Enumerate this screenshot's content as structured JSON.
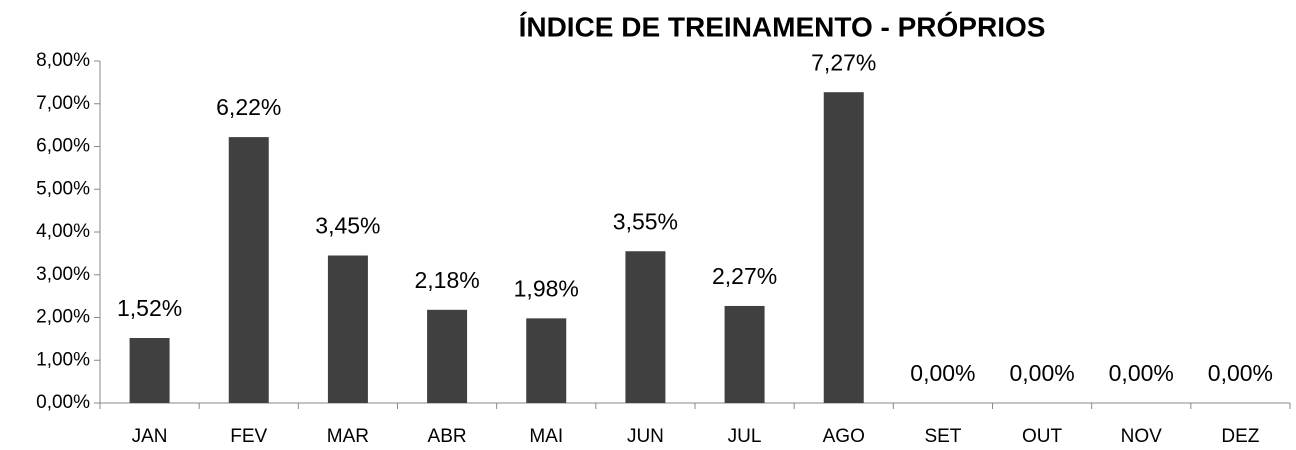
{
  "chart_data": {
    "type": "bar",
    "title": "ÍNDICE DE TREINAMENTO - PRÓPRIOS",
    "categories": [
      "JAN",
      "FEV",
      "MAR",
      "ABR",
      "MAI",
      "JUN",
      "JUL",
      "AGO",
      "SET",
      "OUT",
      "NOV",
      "DEZ"
    ],
    "values": [
      1.52,
      6.22,
      3.45,
      2.18,
      1.98,
      3.55,
      2.27,
      7.27,
      0,
      0,
      0,
      0
    ],
    "value_labels": [
      "1,52%",
      "6,22%",
      "3,45%",
      "2,18%",
      "1,98%",
      "3,55%",
      "2,27%",
      "7,27%",
      "0,00%",
      "0,00%",
      "0,00%",
      "0,00%"
    ],
    "color": "#404040",
    "ylim": [
      0,
      8
    ],
    "yticks": [
      {
        "value": 0,
        "label": "0,00%"
      },
      {
        "value": 1,
        "label": "1,00%"
      },
      {
        "value": 2,
        "label": "2,00%"
      },
      {
        "value": 3,
        "label": "3,00%"
      },
      {
        "value": 4,
        "label": "4,00%"
      },
      {
        "value": 5,
        "label": "5,00%"
      },
      {
        "value": 6,
        "label": "6,00%"
      },
      {
        "value": 7,
        "label": "7,00%"
      },
      {
        "value": 8,
        "label": "8,00%"
      }
    ],
    "grid": false
  }
}
